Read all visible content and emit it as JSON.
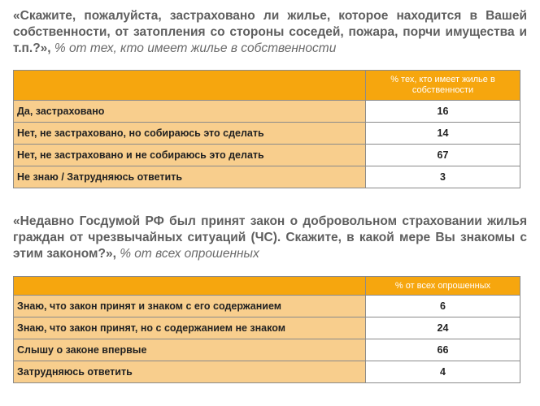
{
  "q1": {
    "question": "«Скажите, пожалуйста, застраховано ли жилье, которое находится в Вашей собственности, от затопления со стороны соседей, пожара, порчи имущества и т.п.?»,",
    "note": "% от тех, кто имеет жилье в собственности",
    "column_header": "% тех, кто имеет жилье в собственности",
    "rows": [
      {
        "label": "Да, застраховано",
        "value": "16"
      },
      {
        "label": "Нет, не застраховано,  но собираюсь  это сделать",
        "value": "14"
      },
      {
        "label": "Нет, не застраховано  и не собираюсь  это делать",
        "value": "67"
      },
      {
        "label": "Не знаю / Затрудняюсь  ответить",
        "value": "3"
      }
    ]
  },
  "q2": {
    "question": "«Недавно Госдумой РФ был принят закон о добровольном страховании жилья граждан от чрезвычайных ситуаций (ЧС). Скажите, в какой мере Вы знакомы с этим законом?»,",
    "note": "% от всех опрошенных",
    "column_header": "% от всех опрошенных",
    "rows": [
      {
        "label": "Знаю, что закон принят и знаком с его содержанием",
        "value": "6"
      },
      {
        "label": "Знаю, что закон принят, но с содержанием  не знаком",
        "value": "24"
      },
      {
        "label": "Слышу  о законе впервые",
        "value": "66"
      },
      {
        "label": "Затрудняюсь  ответить",
        "value": "4"
      }
    ]
  },
  "colors": {
    "header": "#f6a60e",
    "label_cell": "#f8ce8d"
  }
}
